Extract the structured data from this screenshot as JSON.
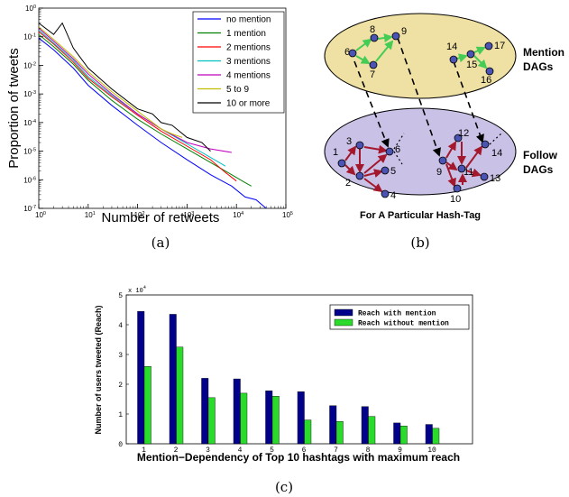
{
  "chart_data": [
    {
      "panel": "a",
      "type": "line",
      "caption": "(a)",
      "xlabel": "Number of retweets",
      "ylabel": "Proportion of tweets",
      "xscale": "log",
      "yscale": "log",
      "xlim": [
        1,
        100000
      ],
      "ylim": [
        1e-07,
        1
      ],
      "x_ticks": [
        {
          "value": 1,
          "base": "10",
          "exp": "0"
        },
        {
          "value": 10,
          "base": "10",
          "exp": "1"
        },
        {
          "value": 100,
          "base": "10",
          "exp": "2"
        },
        {
          "value": 1000,
          "base": "10",
          "exp": "3"
        },
        {
          "value": 10000,
          "base": "10",
          "exp": "4"
        },
        {
          "value": 100000,
          "base": "10",
          "exp": "5"
        }
      ],
      "y_ticks": [
        {
          "value": 1e-07,
          "base": "10",
          "exp": "-7"
        },
        {
          "value": 1e-06,
          "base": "10",
          "exp": "-6"
        },
        {
          "value": 1e-05,
          "base": "10",
          "exp": "-5"
        },
        {
          "value": 0.0001,
          "base": "10",
          "exp": "-4"
        },
        {
          "value": 0.001,
          "base": "10",
          "exp": "-3"
        },
        {
          "value": 0.01,
          "base": "10",
          "exp": "-2"
        },
        {
          "value": 0.1,
          "base": "10",
          "exp": "-1"
        },
        {
          "value": 1,
          "base": "10",
          "exp": "0"
        }
      ],
      "grid": false,
      "legend_position": "top-right",
      "series": [
        {
          "name": "no mention",
          "color": "#0000ff",
          "x": [
            1,
            2,
            5,
            10,
            30,
            100,
            300,
            1000,
            3000,
            8000,
            15000,
            25000,
            40000
          ],
          "y": [
            0.09,
            0.035,
            0.008,
            0.002,
            0.0004,
            8e-05,
            2e-05,
            5e-06,
            1.5e-06,
            6e-07,
            2.5e-07,
            2e-07,
            1e-07
          ]
        },
        {
          "name": "1 mention",
          "color": "#008000",
          "x": [
            1,
            2,
            5,
            10,
            30,
            100,
            300,
            1000,
            3000,
            8000,
            15000,
            20000
          ],
          "y": [
            0.12,
            0.045,
            0.011,
            0.003,
            0.0006,
            0.00013,
            4e-05,
            1.2e-05,
            4e-06,
            1.5e-06,
            8e-07,
            6e-07
          ]
        },
        {
          "name": "2 mentions",
          "color": "#ff0000",
          "x": [
            1,
            2,
            5,
            10,
            30,
            100,
            300,
            1000,
            3000,
            6000,
            10000
          ],
          "y": [
            0.15,
            0.055,
            0.013,
            0.0035,
            0.0008,
            0.00018,
            5e-05,
            1.5e-05,
            5e-06,
            1.8e-06,
            9e-07
          ]
        },
        {
          "name": "3 mentions",
          "color": "#00bfbf",
          "x": [
            1,
            2,
            5,
            10,
            30,
            100,
            300,
            1000,
            3000,
            6000
          ],
          "y": [
            0.17,
            0.06,
            0.015,
            0.004,
            0.0009,
            0.0002,
            6e-05,
            1.8e-05,
            6e-06,
            3e-06
          ]
        },
        {
          "name": "4 mentions",
          "color": "#bf00bf",
          "x": [
            1,
            2,
            5,
            10,
            30,
            100,
            300,
            1000,
            3000,
            8000
          ],
          "y": [
            0.2,
            0.07,
            0.017,
            0.005,
            0.001,
            0.0002,
            6e-05,
            2e-05,
            1.2e-05,
            9e-06
          ]
        },
        {
          "name": "5 to 9",
          "color": "#bfbf00",
          "x": [
            1,
            2,
            5,
            10,
            30,
            100,
            300,
            500,
            800
          ],
          "y": [
            0.22,
            0.08,
            0.02,
            0.006,
            0.0012,
            0.00025,
            6e-05,
            4e-05,
            3e-05
          ]
        },
        {
          "name": "10 or more",
          "color": "#000000",
          "x": [
            1,
            2,
            3,
            5,
            10,
            30,
            100,
            200,
            300,
            500,
            1000,
            2000,
            3000
          ],
          "y": [
            0.3,
            0.12,
            0.3,
            0.04,
            0.008,
            0.0015,
            0.0003,
            0.0002,
            0.0001,
            8e-05,
            3e-05,
            2e-05,
            1e-05
          ]
        }
      ]
    },
    {
      "panel": "c",
      "type": "bar",
      "caption": "(c)",
      "xlabel": "Mention−Dependency of Top 10 hashtags with maximum reach",
      "ylabel": "Number of users tweeted (Reach)",
      "ylim": [
        0,
        50000
      ],
      "y_ticks": [
        0,
        10000,
        20000,
        30000,
        40000,
        50000
      ],
      "y_tick_labels": [
        "0",
        "1",
        "2",
        "3",
        "4",
        "5"
      ],
      "y_multiplier_base": "x 10",
      "y_multiplier_exp": "4",
      "categories": [
        "1",
        "2",
        "3",
        "4",
        "5",
        "6",
        "7",
        "8",
        "9",
        "10"
      ],
      "legend_position": "top-right",
      "series": [
        {
          "name": "Reach with mention",
          "color": "#00008b",
          "values": [
            44500,
            43500,
            22000,
            21800,
            17800,
            17500,
            12800,
            12500,
            7000,
            6500
          ]
        },
        {
          "name": "Reach without mention",
          "color": "#2bdb2b",
          "values": [
            26000,
            32500,
            15500,
            17000,
            16000,
            8000,
            7500,
            9200,
            6000,
            5200
          ]
        }
      ]
    }
  ],
  "diagram_b": {
    "caption": "(b)",
    "title": "For A Particular Hash-Tag",
    "mention_label": [
      "Mention",
      "DAGs"
    ],
    "follow_label": [
      "Follow",
      "DAGs"
    ],
    "colors": {
      "mention_fill": "#efe0a3",
      "follow_fill": "#c9c1e6",
      "node": "#4b53b3",
      "mention_edge": "#44cc55",
      "follow_edge": "#a3182d"
    },
    "nodes": [
      {
        "id": "6",
        "group": "mention"
      },
      {
        "id": "7",
        "group": "mention"
      },
      {
        "id": "8",
        "group": "mention"
      },
      {
        "id": "9",
        "group": "mention"
      },
      {
        "id": "14",
        "group": "mention"
      },
      {
        "id": "15",
        "group": "mention"
      },
      {
        "id": "16",
        "group": "mention"
      },
      {
        "id": "17",
        "group": "mention"
      },
      {
        "id": "1",
        "group": "follow"
      },
      {
        "id": "2",
        "group": "follow"
      },
      {
        "id": "3",
        "group": "follow"
      },
      {
        "id": "4",
        "group": "follow"
      },
      {
        "id": "5",
        "group": "follow"
      },
      {
        "id": "6",
        "group": "follow"
      },
      {
        "id": "9",
        "group": "follow"
      },
      {
        "id": "10",
        "group": "follow"
      },
      {
        "id": "11",
        "group": "follow"
      },
      {
        "id": "12",
        "group": "follow"
      },
      {
        "id": "13",
        "group": "follow"
      },
      {
        "id": "14",
        "group": "follow"
      }
    ]
  }
}
